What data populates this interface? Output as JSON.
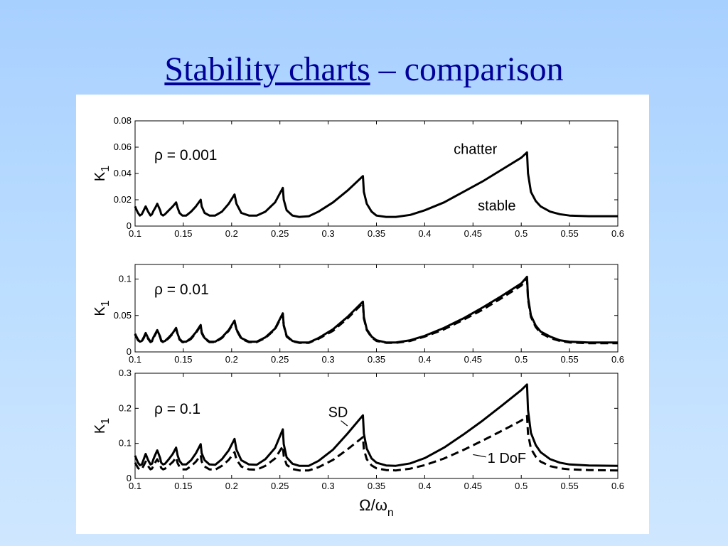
{
  "slide": {
    "title_link": "Stability charts",
    "title_rest": " – comparison"
  },
  "chart_data": [
    {
      "type": "line",
      "annotation": "ρ = 0.001",
      "ylabel": "K",
      "ylabel_sub": "1",
      "xlabel": "",
      "xlim": [
        0.1,
        0.6
      ],
      "ylim": [
        0,
        0.08
      ],
      "x_ticks": [
        "0.1",
        "0.15",
        "0.2",
        "0.25",
        "0.3",
        "0.35",
        "0.4",
        "0.45",
        "0.5",
        "0.55",
        "0.6"
      ],
      "y_ticks": [
        "0",
        "0.02",
        "0.04",
        "0.06",
        "0.08"
      ],
      "region_labels": [
        {
          "text": "chatter",
          "x": 0.43,
          "y": 0.055
        },
        {
          "text": "stable",
          "x": 0.455,
          "y": 0.012
        }
      ],
      "series": [
        {
          "style": "solid",
          "x": [
            0.1,
            0.101,
            0.103,
            0.105,
            0.107,
            0.109,
            0.111,
            0.1135,
            0.116,
            0.1175,
            0.119,
            0.121,
            0.123,
            0.126,
            0.127,
            0.129,
            0.131,
            0.135,
            0.139,
            0.1425,
            0.144,
            0.146,
            0.149,
            0.153,
            0.158,
            0.163,
            0.168,
            0.169,
            0.172,
            0.177,
            0.183,
            0.19,
            0.197,
            0.203,
            0.205,
            0.21,
            0.218,
            0.226,
            0.235,
            0.245,
            0.253,
            0.254,
            0.257,
            0.263,
            0.27,
            0.28,
            0.29,
            0.305,
            0.32,
            0.336,
            0.337,
            0.34,
            0.345,
            0.35,
            0.36,
            0.37,
            0.385,
            0.4,
            0.42,
            0.44,
            0.46,
            0.48,
            0.5,
            0.506,
            0.507,
            0.51,
            0.515,
            0.52,
            0.53,
            0.54,
            0.55,
            0.57,
            0.6
          ],
          "y": [
            0.015,
            0.013,
            0.01,
            0.008,
            0.009,
            0.012,
            0.015,
            0.011,
            0.008,
            0.009,
            0.0115,
            0.014,
            0.017,
            0.012,
            0.009,
            0.008,
            0.009,
            0.012,
            0.015,
            0.018,
            0.014,
            0.01,
            0.008,
            0.008,
            0.011,
            0.015,
            0.02,
            0.015,
            0.01,
            0.008,
            0.008,
            0.011,
            0.017,
            0.024,
            0.017,
            0.01,
            0.008,
            0.008,
            0.011,
            0.018,
            0.029,
            0.02,
            0.012,
            0.008,
            0.007,
            0.0075,
            0.011,
            0.018,
            0.027,
            0.038,
            0.026,
            0.017,
            0.011,
            0.008,
            0.007,
            0.007,
            0.0085,
            0.012,
            0.018,
            0.026,
            0.034,
            0.043,
            0.052,
            0.056,
            0.04,
            0.026,
            0.019,
            0.015,
            0.011,
            0.009,
            0.008,
            0.0075,
            0.0075
          ]
        }
      ]
    },
    {
      "type": "line",
      "annotation": "ρ = 0.01",
      "ylabel": "K",
      "ylabel_sub": "1",
      "xlabel": "",
      "xlim": [
        0.1,
        0.6
      ],
      "ylim": [
        0,
        0.12
      ],
      "x_ticks": [
        "0.1",
        "0.15",
        "0.2",
        "0.25",
        "0.3",
        "0.35",
        "0.4",
        "0.45",
        "0.5",
        "0.55",
        "0.6"
      ],
      "y_ticks": [
        "0",
        "0.05",
        "0.1"
      ],
      "series": [
        {
          "style": "solid",
          "x": [
            0.1,
            0.101,
            0.103,
            0.105,
            0.107,
            0.109,
            0.111,
            0.1135,
            0.116,
            0.1175,
            0.119,
            0.121,
            0.123,
            0.126,
            0.127,
            0.129,
            0.131,
            0.135,
            0.139,
            0.1425,
            0.144,
            0.146,
            0.149,
            0.153,
            0.158,
            0.163,
            0.168,
            0.169,
            0.172,
            0.177,
            0.183,
            0.19,
            0.197,
            0.203,
            0.205,
            0.21,
            0.218,
            0.226,
            0.235,
            0.245,
            0.253,
            0.254,
            0.257,
            0.263,
            0.27,
            0.28,
            0.29,
            0.305,
            0.32,
            0.336,
            0.337,
            0.34,
            0.345,
            0.35,
            0.36,
            0.37,
            0.385,
            0.4,
            0.42,
            0.44,
            0.46,
            0.48,
            0.5,
            0.506,
            0.507,
            0.51,
            0.515,
            0.52,
            0.53,
            0.54,
            0.55,
            0.57,
            0.6
          ],
          "y": [
            0.025,
            0.022,
            0.017,
            0.014,
            0.015,
            0.02,
            0.026,
            0.019,
            0.014,
            0.015,
            0.02,
            0.025,
            0.03,
            0.021,
            0.016,
            0.014,
            0.015,
            0.02,
            0.026,
            0.033,
            0.025,
            0.018,
            0.014,
            0.014,
            0.019,
            0.027,
            0.037,
            0.027,
            0.019,
            0.014,
            0.014,
            0.02,
            0.03,
            0.043,
            0.031,
            0.019,
            0.014,
            0.014,
            0.02,
            0.032,
            0.053,
            0.037,
            0.022,
            0.015,
            0.013,
            0.013,
            0.019,
            0.031,
            0.048,
            0.069,
            0.048,
            0.031,
            0.021,
            0.016,
            0.013,
            0.013,
            0.016,
            0.022,
            0.033,
            0.046,
            0.061,
            0.077,
            0.094,
            0.103,
            0.075,
            0.05,
            0.036,
            0.028,
            0.021,
            0.016,
            0.014,
            0.013,
            0.013
          ]
        },
        {
          "style": "dashed",
          "x": [
            0.1,
            0.101,
            0.103,
            0.105,
            0.107,
            0.109,
            0.111,
            0.1135,
            0.116,
            0.1175,
            0.119,
            0.121,
            0.123,
            0.126,
            0.127,
            0.129,
            0.131,
            0.135,
            0.139,
            0.1425,
            0.144,
            0.146,
            0.149,
            0.153,
            0.158,
            0.163,
            0.168,
            0.169,
            0.172,
            0.177,
            0.183,
            0.19,
            0.197,
            0.203,
            0.205,
            0.21,
            0.218,
            0.226,
            0.235,
            0.245,
            0.253,
            0.254,
            0.257,
            0.263,
            0.27,
            0.28,
            0.29,
            0.305,
            0.32,
            0.336,
            0.337,
            0.34,
            0.345,
            0.35,
            0.36,
            0.37,
            0.385,
            0.4,
            0.42,
            0.44,
            0.46,
            0.48,
            0.5,
            0.506,
            0.507,
            0.51,
            0.515,
            0.52,
            0.53,
            0.54,
            0.55,
            0.57,
            0.6
          ],
          "y": [
            0.024,
            0.021,
            0.016,
            0.0135,
            0.0145,
            0.019,
            0.025,
            0.018,
            0.0135,
            0.0145,
            0.019,
            0.024,
            0.029,
            0.02,
            0.015,
            0.0135,
            0.0145,
            0.019,
            0.025,
            0.032,
            0.024,
            0.017,
            0.0135,
            0.0135,
            0.018,
            0.026,
            0.036,
            0.026,
            0.018,
            0.0135,
            0.0135,
            0.019,
            0.029,
            0.042,
            0.03,
            0.018,
            0.0135,
            0.0135,
            0.019,
            0.031,
            0.052,
            0.036,
            0.021,
            0.0145,
            0.0125,
            0.0125,
            0.018,
            0.029,
            0.046,
            0.067,
            0.046,
            0.03,
            0.02,
            0.015,
            0.0125,
            0.0125,
            0.015,
            0.021,
            0.031,
            0.044,
            0.058,
            0.074,
            0.091,
            0.1,
            0.072,
            0.048,
            0.034,
            0.026,
            0.019,
            0.015,
            0.013,
            0.012,
            0.012
          ]
        }
      ]
    },
    {
      "type": "line",
      "annotation": "ρ = 0.1",
      "ylabel": "K",
      "ylabel_sub": "1",
      "xlabel": "Ω/ω",
      "xlabel_sub": "n",
      "xlim": [
        0.1,
        0.6
      ],
      "ylim": [
        0,
        0.3
      ],
      "x_ticks": [
        "0.1",
        "0.15",
        "0.2",
        "0.25",
        "0.3",
        "0.35",
        "0.4",
        "0.45",
        "0.5",
        "0.55",
        "0.6"
      ],
      "y_ticks": [
        "0",
        "0.1",
        "0.2",
        "0.3"
      ],
      "series_labels": [
        {
          "text": "SD",
          "x": 0.3,
          "y": 0.175,
          "px": 0.32,
          "py": 0.15
        },
        {
          "text": "1 DoF",
          "x": 0.465,
          "y": 0.045,
          "px": 0.45,
          "py": 0.068
        }
      ],
      "series": [
        {
          "name": "SD",
          "style": "solid",
          "x": [
            0.1,
            0.101,
            0.103,
            0.105,
            0.107,
            0.109,
            0.111,
            0.1135,
            0.116,
            0.1175,
            0.119,
            0.121,
            0.123,
            0.126,
            0.127,
            0.129,
            0.131,
            0.135,
            0.139,
            0.1425,
            0.144,
            0.146,
            0.149,
            0.153,
            0.158,
            0.163,
            0.168,
            0.169,
            0.172,
            0.177,
            0.183,
            0.19,
            0.197,
            0.203,
            0.205,
            0.21,
            0.218,
            0.226,
            0.235,
            0.245,
            0.253,
            0.254,
            0.257,
            0.263,
            0.27,
            0.28,
            0.29,
            0.305,
            0.32,
            0.336,
            0.337,
            0.34,
            0.345,
            0.35,
            0.36,
            0.37,
            0.385,
            0.4,
            0.42,
            0.44,
            0.46,
            0.48,
            0.5,
            0.506,
            0.507,
            0.51,
            0.515,
            0.52,
            0.53,
            0.54,
            0.55,
            0.57,
            0.6
          ],
          "y": [
            0.065,
            0.058,
            0.045,
            0.038,
            0.04,
            0.055,
            0.07,
            0.052,
            0.04,
            0.042,
            0.055,
            0.068,
            0.08,
            0.058,
            0.045,
            0.04,
            0.042,
            0.055,
            0.07,
            0.088,
            0.066,
            0.05,
            0.04,
            0.04,
            0.052,
            0.072,
            0.098,
            0.072,
            0.052,
            0.04,
            0.039,
            0.055,
            0.08,
            0.113,
            0.082,
            0.052,
            0.04,
            0.039,
            0.055,
            0.087,
            0.14,
            0.098,
            0.06,
            0.042,
            0.036,
            0.036,
            0.05,
            0.082,
            0.128,
            0.18,
            0.128,
            0.085,
            0.057,
            0.045,
            0.037,
            0.036,
            0.043,
            0.058,
            0.088,
            0.125,
            0.165,
            0.208,
            0.252,
            0.268,
            0.195,
            0.13,
            0.095,
            0.075,
            0.055,
            0.045,
            0.04,
            0.037,
            0.036
          ]
        },
        {
          "name": "1 DoF",
          "style": "dashed",
          "x": [
            0.1,
            0.101,
            0.103,
            0.105,
            0.107,
            0.109,
            0.111,
            0.1135,
            0.116,
            0.1175,
            0.119,
            0.121,
            0.123,
            0.126,
            0.127,
            0.129,
            0.131,
            0.135,
            0.139,
            0.1425,
            0.144,
            0.146,
            0.149,
            0.153,
            0.158,
            0.163,
            0.168,
            0.169,
            0.172,
            0.177,
            0.183,
            0.19,
            0.197,
            0.203,
            0.205,
            0.21,
            0.218,
            0.226,
            0.235,
            0.245,
            0.253,
            0.254,
            0.257,
            0.263,
            0.27,
            0.28,
            0.29,
            0.305,
            0.32,
            0.336,
            0.337,
            0.34,
            0.345,
            0.35,
            0.36,
            0.37,
            0.385,
            0.4,
            0.42,
            0.44,
            0.46,
            0.48,
            0.5,
            0.506,
            0.507,
            0.51,
            0.515,
            0.52,
            0.53,
            0.54,
            0.55,
            0.57,
            0.6
          ],
          "y": [
            0.045,
            0.04,
            0.03,
            0.025,
            0.027,
            0.037,
            0.048,
            0.035,
            0.026,
            0.028,
            0.037,
            0.046,
            0.055,
            0.039,
            0.03,
            0.026,
            0.028,
            0.037,
            0.047,
            0.06,
            0.044,
            0.033,
            0.026,
            0.026,
            0.035,
            0.048,
            0.066,
            0.048,
            0.034,
            0.026,
            0.025,
            0.036,
            0.053,
            0.075,
            0.054,
            0.034,
            0.026,
            0.025,
            0.036,
            0.057,
            0.092,
            0.064,
            0.039,
            0.027,
            0.023,
            0.023,
            0.032,
            0.053,
            0.083,
            0.118,
            0.083,
            0.055,
            0.037,
            0.029,
            0.024,
            0.023,
            0.028,
            0.038,
            0.057,
            0.081,
            0.108,
            0.136,
            0.165,
            0.178,
            0.128,
            0.085,
            0.062,
            0.048,
            0.035,
            0.029,
            0.026,
            0.024,
            0.023
          ]
        }
      ]
    }
  ]
}
